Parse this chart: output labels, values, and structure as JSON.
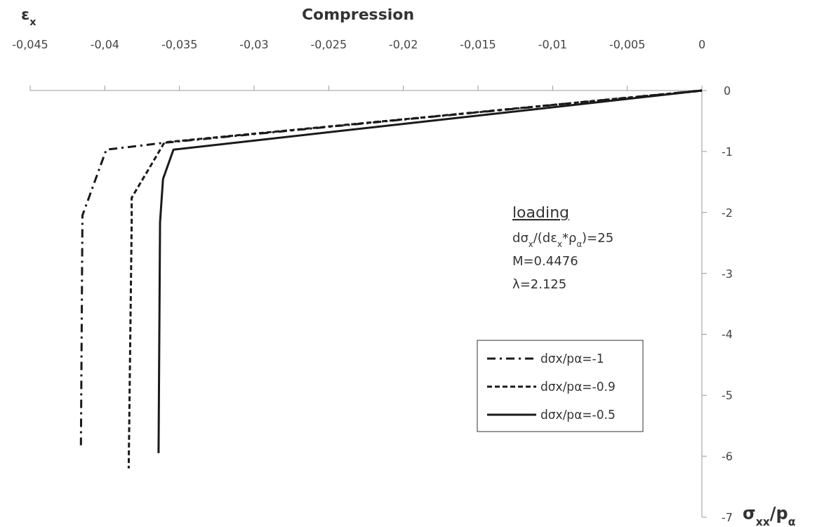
{
  "chart_data": {
    "type": "line",
    "title": "Compression",
    "xlabel": "ε$_{x}$",
    "ylabel": "σ$_{xx}$/p$_{α}$",
    "xlim": [
      -0.045,
      0
    ],
    "xticks": [
      {
        "value": -0.045,
        "label": "-0,045"
      },
      {
        "value": -0.04,
        "label": "-0,04"
      },
      {
        "value": -0.035,
        "label": "-0,035"
      },
      {
        "value": -0.03,
        "label": "-0,03"
      },
      {
        "value": -0.025,
        "label": "-0,025"
      },
      {
        "value": -0.02,
        "label": "-0,02"
      },
      {
        "value": -0.015,
        "label": "-0,015"
      },
      {
        "value": -0.01,
        "label": "-0,01"
      },
      {
        "value": -0.005,
        "label": "-0,005"
      },
      0
    ],
    "ylim": [
      -7,
      0
    ],
    "yticks": [
      0,
      -1,
      -2,
      -3,
      -4,
      -5,
      -6,
      -7
    ],
    "grid": false,
    "legend": "right",
    "series": [
      {
        "name": "dσx/pα=-1",
        "color": "#1a1a1a",
        "line_style": "dashdot",
        "x": [
          0,
          -0.0361,
          -0.0399,
          -0.0415,
          -0.0416
        ],
        "values": [
          0,
          -0.86,
          -0.97,
          -2.05,
          -5.82
        ]
      },
      {
        "name": "dσx/pα=-0.9",
        "color": "#1a1a1a",
        "line_style": "dashed",
        "x": [
          0,
          -0.036,
          -0.0382,
          -0.0382,
          -0.0384
        ],
        "values": [
          0,
          -0.85,
          -1.76,
          -2.16,
          -6.2
        ]
      },
      {
        "name": "dσx/pα=-0.5",
        "color": "#1a1a1a",
        "line_style": "solid",
        "x": [
          0,
          -0.0354,
          -0.0361,
          -0.0363,
          -0.0364
        ],
        "values": [
          0,
          -0.97,
          -1.45,
          -2.16,
          -5.95
        ]
      }
    ],
    "annotations": [
      "loading",
      "dσ$_{x}$/(dε$_{x}$*ρ$_{α}$)=25",
      "M=0.4476",
      "λ=2.125"
    ]
  }
}
